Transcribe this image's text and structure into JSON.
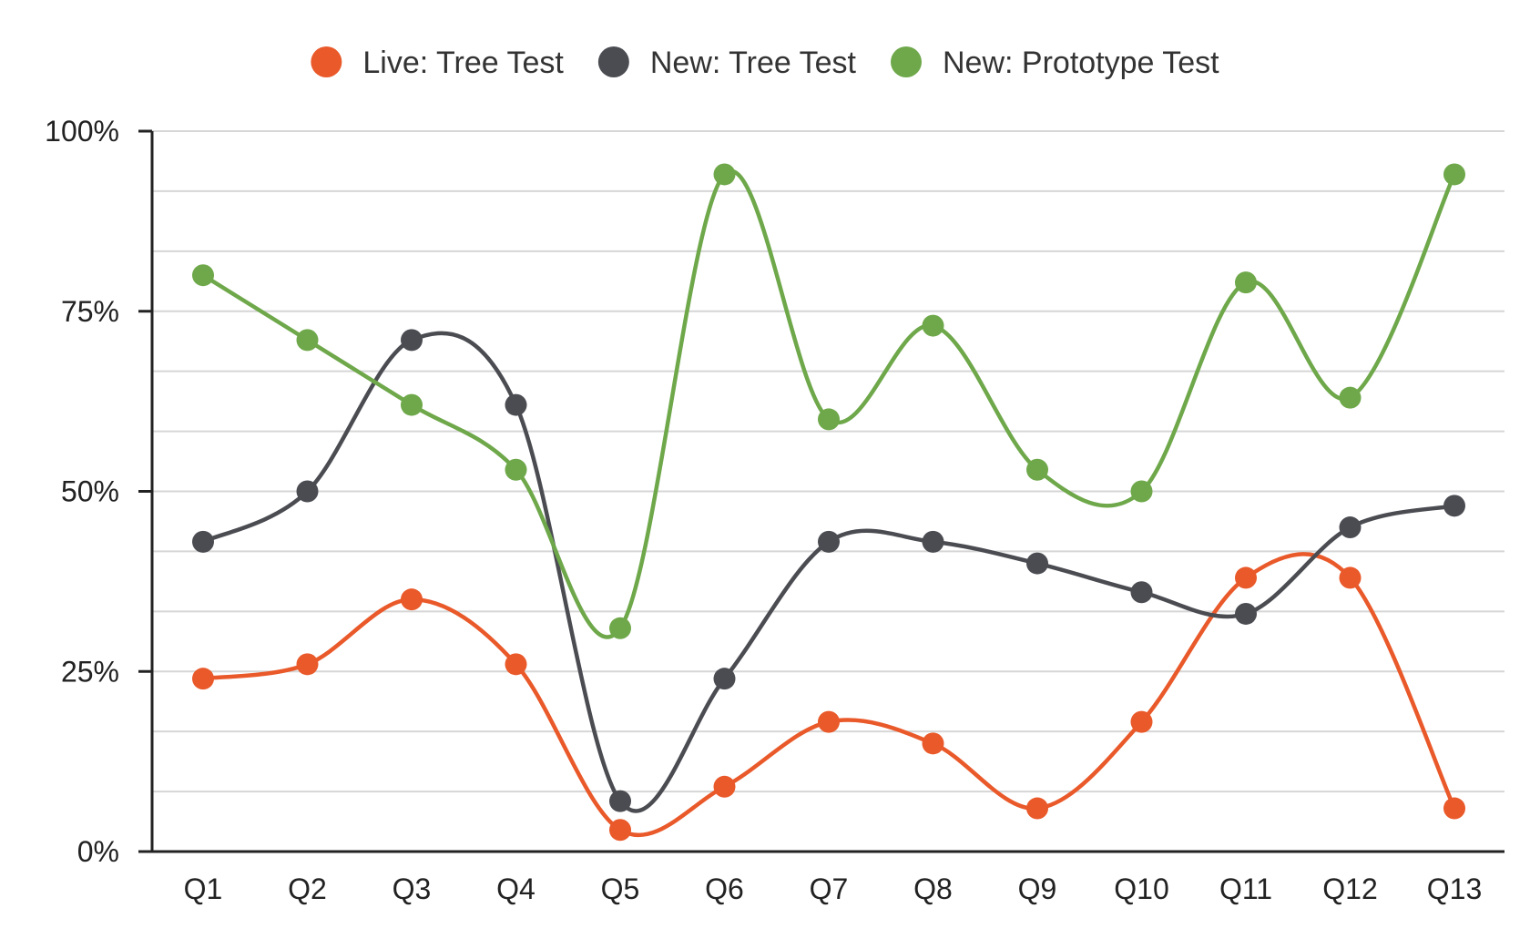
{
  "chart_data": {
    "type": "line",
    "title": "",
    "xlabel": "",
    "ylabel": "",
    "categories": [
      "Q1",
      "Q2",
      "Q3",
      "Q4",
      "Q5",
      "Q6",
      "Q7",
      "Q8",
      "Q9",
      "Q10",
      "Q11",
      "Q12",
      "Q13"
    ],
    "ylim": [
      0,
      100
    ],
    "yticks": [
      0,
      25,
      50,
      75,
      100
    ],
    "ytick_labels": [
      "0%",
      "25%",
      "50%",
      "75%",
      "100%"
    ],
    "minor_gridlines": [
      8.33,
      16.67,
      33.33,
      41.67,
      58.33,
      66.67,
      83.33,
      91.67
    ],
    "grid": true,
    "smooth": true,
    "legend_position": "top-center",
    "series": [
      {
        "name": "Live: Tree Test",
        "color": "#e9592a",
        "values": [
          24,
          26,
          35,
          26,
          3,
          9,
          18,
          15,
          6,
          18,
          38,
          38,
          6
        ]
      },
      {
        "name": "New: Tree Test",
        "color": "#4a4c52",
        "values": [
          43,
          50,
          71,
          62,
          7,
          24,
          43,
          43,
          40,
          36,
          33,
          45,
          48
        ]
      },
      {
        "name": "New: Prototype Test",
        "color": "#6ea84a",
        "values": [
          80,
          71,
          62,
          53,
          31,
          94,
          60,
          73,
          53,
          50,
          79,
          63,
          94
        ]
      }
    ]
  }
}
